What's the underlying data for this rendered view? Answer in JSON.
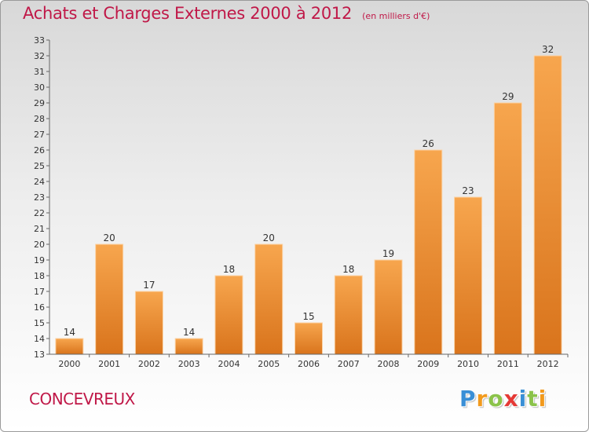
{
  "title": "Achats et Charges Externes 2000 à 2012",
  "subtitle": "(en milliers d'€)",
  "commune": "CONCEVREUX",
  "logo": {
    "letters": [
      "P",
      "r",
      "o",
      "x",
      "i",
      "t",
      "i"
    ],
    "colors": [
      "#3a8fd6",
      "#f29a1d",
      "#8bc34a",
      "#e53935",
      "#3a8fd6",
      "#8bc34a",
      "#f29a1d"
    ]
  },
  "colors": {
    "accent": "#c01848",
    "bar_light": "#f7a64e",
    "bar_dark": "#d9741c"
  },
  "chart_data": {
    "type": "bar",
    "categories": [
      "2000",
      "2001",
      "2002",
      "2003",
      "2004",
      "2005",
      "2006",
      "2007",
      "2008",
      "2009",
      "2010",
      "2011",
      "2012"
    ],
    "values": [
      14,
      20,
      17,
      14,
      18,
      20,
      15,
      18,
      19,
      26,
      23,
      29,
      32
    ],
    "ylim": [
      13,
      33
    ],
    "yticks": [
      13,
      14,
      15,
      16,
      17,
      18,
      19,
      20,
      21,
      22,
      23,
      24,
      25,
      26,
      27,
      28,
      29,
      30,
      31,
      32,
      33
    ],
    "grid": false,
    "data_labels": true
  }
}
